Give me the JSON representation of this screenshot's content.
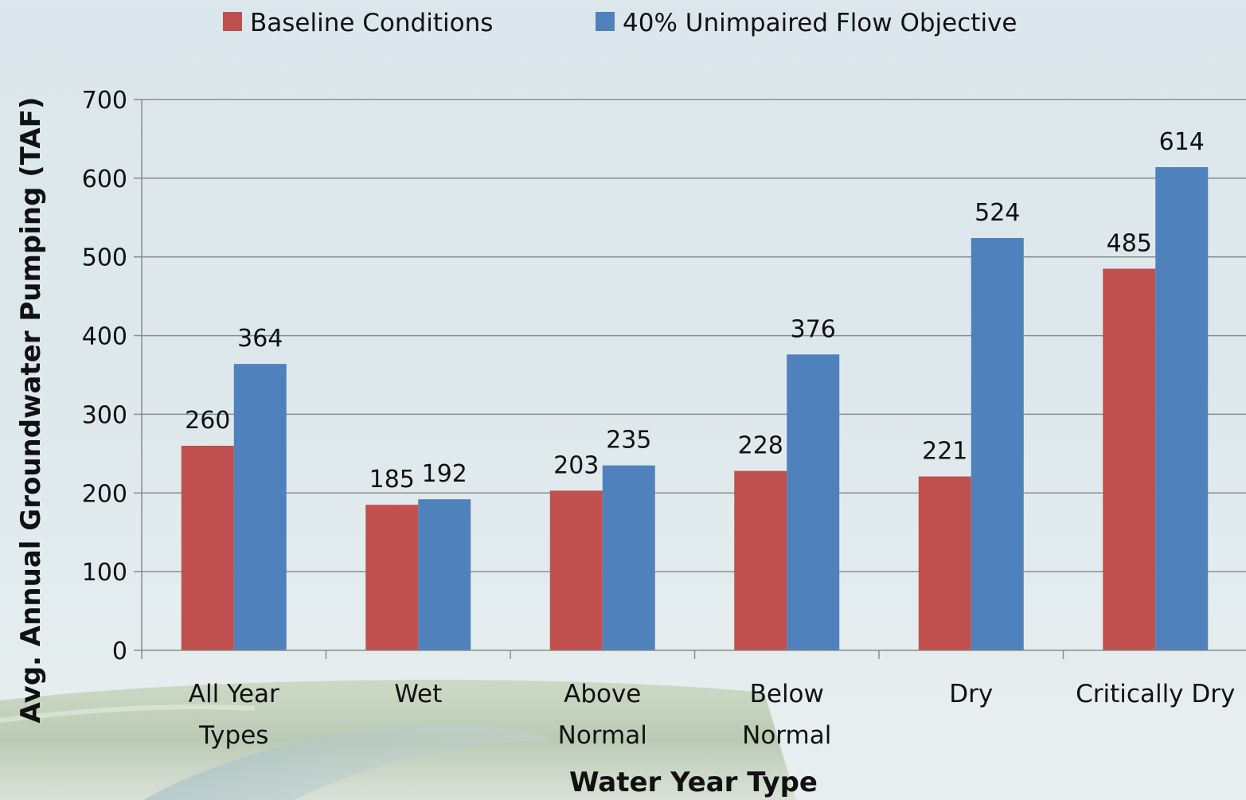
{
  "chart_data": {
    "type": "bar",
    "categories": [
      [
        "All Year",
        "Types"
      ],
      [
        "Wet"
      ],
      [
        "Above",
        "Normal"
      ],
      [
        "Below",
        "Normal"
      ],
      [
        "Dry"
      ],
      [
        "Critically Dry"
      ]
    ],
    "series": [
      {
        "name": "Baseline Conditions",
        "color": "#c0504d",
        "values": [
          260,
          185,
          203,
          228,
          221,
          485
        ]
      },
      {
        "name": "40% Unimpaired Flow Objective",
        "color": "#4f81bd",
        "values": [
          364,
          192,
          235,
          376,
          524,
          614
        ]
      }
    ],
    "xlabel": "Water Year Type",
    "ylabel": "Avg. Annual Groundwater Pumping (TAF)",
    "ylim": [
      0,
      700
    ],
    "yticks": [
      0,
      100,
      200,
      300,
      400,
      500,
      600,
      700
    ],
    "grid": true,
    "legend_position": "top-center",
    "data_labels": true
  }
}
